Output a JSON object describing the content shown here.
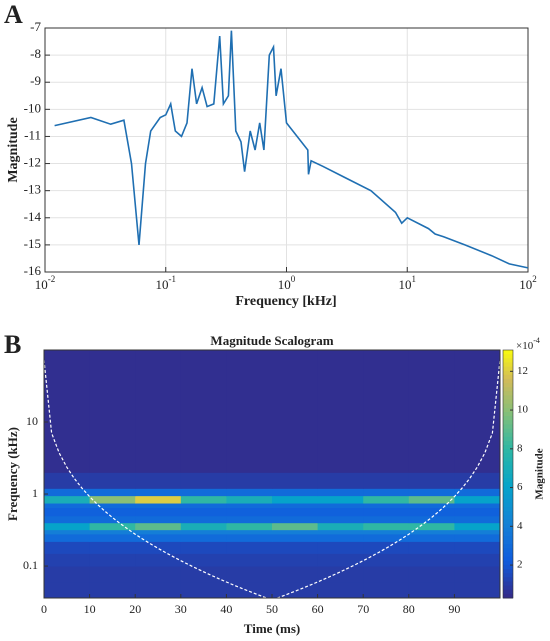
{
  "chart_data": [
    {
      "type": "line",
      "panel": "A",
      "xlabel": "Frequency [kHz]",
      "ylabel": "Magnitude",
      "xscale": "log",
      "grid": true,
      "color": "#1f6fb2",
      "xlim": [
        0.01,
        100
      ],
      "ylim": [
        -16,
        -7
      ],
      "xticks": [
        {
          "value": 0.01,
          "label": "10",
          "exp": "-2"
        },
        {
          "value": 0.1,
          "label": "10",
          "exp": "-1"
        },
        {
          "value": 1,
          "label": "10",
          "exp": "0"
        },
        {
          "value": 10,
          "label": "10",
          "exp": "1"
        },
        {
          "value": 100,
          "label": "10",
          "exp": "2"
        }
      ],
      "yticks": [
        -16,
        -15,
        -14,
        -13,
        -12,
        -11,
        -10,
        -9,
        -8,
        -7
      ],
      "x": [
        0.012,
        0.024,
        0.035,
        0.045,
        0.052,
        0.06,
        0.068,
        0.075,
        0.09,
        0.1,
        0.11,
        0.12,
        0.135,
        0.15,
        0.165,
        0.18,
        0.2,
        0.22,
        0.25,
        0.28,
        0.3,
        0.33,
        0.35,
        0.38,
        0.42,
        0.45,
        0.5,
        0.55,
        0.6,
        0.65,
        0.72,
        0.78,
        0.82,
        0.9,
        1.0,
        1.5,
        1.52,
        1.6,
        2,
        3,
        5,
        8,
        9,
        10,
        15,
        17,
        20,
        30,
        50,
        70,
        100
      ],
      "values": [
        -10.6,
        -10.3,
        -10.55,
        -10.4,
        -12,
        -15,
        -12,
        -10.8,
        -10.3,
        -10.2,
        -9.8,
        -10.8,
        -11,
        -10.5,
        -8.5,
        -9.8,
        -9.2,
        -9.9,
        -9.8,
        -7.3,
        -9.8,
        -9.5,
        -7.1,
        -10.8,
        -11.2,
        -12.3,
        -10.8,
        -11.5,
        -10.5,
        -11.5,
        -8,
        -7.7,
        -9.5,
        -8.5,
        -10.5,
        -11.5,
        -12.4,
        -11.9,
        -12.1,
        -12.5,
        -13,
        -13.8,
        -14.2,
        -14,
        -14.4,
        -14.6,
        -14.7,
        -15,
        -15.4,
        -15.7,
        -15.85
      ]
    },
    {
      "type": "heatmap",
      "panel": "B",
      "title": "Magnitude Scalogram",
      "xlabel": "Time (ms)",
      "ylabel": "Frequency (kHz)",
      "yscale": "log",
      "xlim": [
        0,
        100
      ],
      "ylim": [
        0.036,
        100
      ],
      "xticks": [
        0,
        10,
        20,
        30,
        40,
        50,
        60,
        70,
        80,
        90
      ],
      "yticks": [
        0.1,
        1,
        10
      ],
      "x_edges": [
        0,
        10,
        20,
        30,
        40,
        50,
        60,
        70,
        80,
        90,
        100
      ],
      "y_edges": [
        0.036,
        0.06,
        0.1,
        0.15,
        0.22,
        0.28,
        0.32,
        0.4,
        0.5,
        0.65,
        0.75,
        0.95,
        1.2,
        2,
        100
      ],
      "values": [
        [
          1,
          1,
          1,
          1,
          1,
          1,
          1,
          1,
          1,
          1
        ],
        [
          1,
          1,
          1,
          1,
          1,
          1,
          1,
          1,
          1,
          1
        ],
        [
          1.2,
          1.2,
          1.2,
          1.2,
          1.2,
          1.2,
          1.2,
          1.2,
          1.2,
          1.2
        ],
        [
          1.5,
          1.5,
          1.5,
          1.5,
          1.5,
          1.5,
          1.5,
          1.5,
          1.5,
          1.5
        ],
        [
          3,
          3,
          3,
          3,
          3,
          3,
          3,
          3,
          3,
          3
        ],
        [
          4,
          4,
          4,
          4,
          4,
          4,
          4,
          4,
          4,
          4
        ],
        [
          6,
          8,
          9,
          7,
          8,
          9,
          7,
          8,
          8,
          6
        ],
        [
          3,
          3,
          3,
          3,
          3,
          3,
          3,
          3,
          3,
          3
        ],
        [
          2.5,
          2.5,
          2.5,
          2.5,
          2.5,
          2.5,
          2.5,
          2.5,
          2.5,
          2.5
        ],
        [
          3,
          3,
          3,
          3,
          3,
          3,
          3,
          3,
          3,
          3
        ],
        [
          7,
          10,
          12,
          8,
          7,
          6,
          6,
          8,
          9,
          6
        ],
        [
          3,
          3,
          3,
          3,
          3,
          3,
          3,
          3,
          3,
          3
        ],
        [
          1,
          1,
          1,
          1,
          1,
          1,
          1,
          1,
          1,
          1
        ],
        [
          0.5,
          0.5,
          0.5,
          0.5,
          0.5,
          0.5,
          0.5,
          0.5,
          0.5,
          0.5
        ]
      ],
      "clim": [
        0.3,
        13.1
      ],
      "colorbar_ticks": [
        2,
        4,
        6,
        8,
        10,
        12
      ],
      "colorbar_label": "Magnitude",
      "colorbar_multiplier": "×10",
      "colorbar_exp": "-4"
    }
  ]
}
